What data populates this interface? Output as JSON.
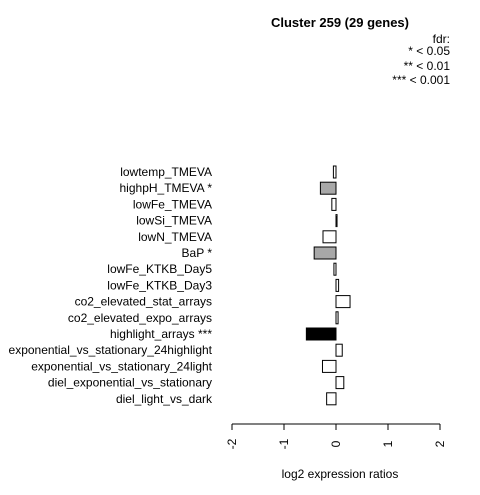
{
  "chart_data": {
    "type": "bar",
    "orientation": "horizontal",
    "title": "Cluster 259 (29 genes)",
    "xlabel": "log2 expression ratios",
    "ylabel": "",
    "xlim": [
      -2,
      2
    ],
    "x_ticks": [
      "-2",
      "-1",
      "0",
      "1",
      "2"
    ],
    "grid": false,
    "legend": {
      "placement": "top-right",
      "title": "fdr:",
      "entries": [
        "* < 0.05",
        "** < 0.01",
        "*** < 0.001"
      ]
    },
    "categories": [
      "lowtemp_TMEVA",
      "highpH_TMEVA *",
      "lowFe_TMEVA",
      "lowSi_TMEVA",
      "lowN_TMEVA",
      "BaP *",
      "lowFe_KTKB_Day5",
      "lowFe_KTKB_Day3",
      "co2_elevated_stat_arrays",
      "co2_elevated_expo_arrays",
      "highlight_arrays ***",
      "exponential_vs_stationary_24highlight",
      "exponential_vs_stationary_24light",
      "diel_exponential_vs_stationary",
      "diel_light_vs_dark"
    ],
    "values": [
      -0.05,
      -0.3,
      -0.08,
      0.02,
      -0.25,
      -0.42,
      -0.04,
      0.05,
      0.27,
      0.04,
      -0.57,
      0.12,
      -0.26,
      0.15,
      -0.18
    ],
    "significance": [
      "none",
      "*",
      "none",
      "none",
      "none",
      "*",
      "none",
      "none",
      "none",
      "none",
      "***",
      "none",
      "none",
      "none",
      "none"
    ],
    "colors": {
      "none": "#ffffff",
      "*": "#a8a8a8",
      "***": "#000000",
      "stroke": "#000000"
    }
  }
}
